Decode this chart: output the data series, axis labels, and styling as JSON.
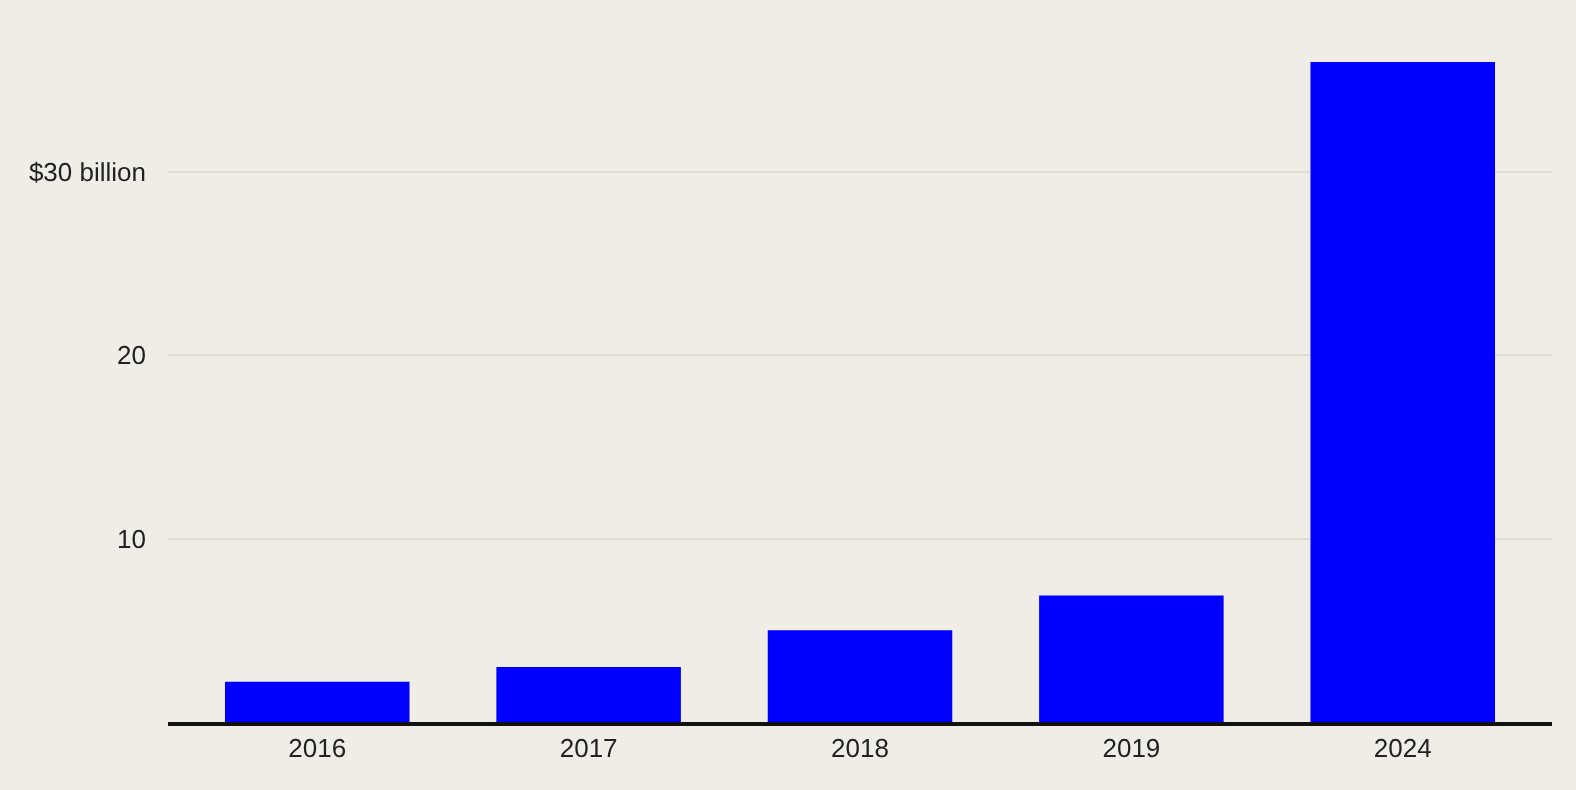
{
  "chart_data": {
    "type": "bar",
    "categories": [
      "2016",
      "2017",
      "2018",
      "2019",
      "2024"
    ],
    "values": [
      2.2,
      3.0,
      5.0,
      6.9,
      36.0
    ],
    "color": "#0000ff",
    "ylim": [
      0,
      36
    ],
    "yticks": [
      10,
      20,
      {
        "value": 30,
        "label": "$30 billion"
      }
    ],
    "grid": "y"
  }
}
